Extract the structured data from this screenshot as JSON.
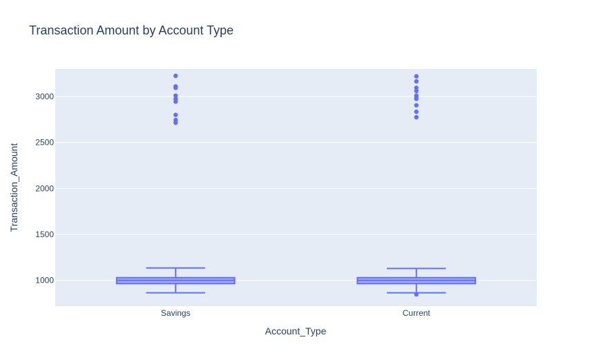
{
  "chart_data": {
    "type": "box",
    "title": "Transaction Amount by Account Type",
    "xlabel": "Account_Type",
    "ylabel": "Transaction_Amount",
    "categories": [
      "Savings",
      "Current"
    ],
    "y_ticks": [
      1000,
      1500,
      2000,
      2500,
      3000
    ],
    "ylim": [
      720,
      3300
    ],
    "grid": true,
    "color": "#636efa",
    "plot_background": "#e5ecf6",
    "boxes": [
      {
        "name": "Savings",
        "lower_fence": 865,
        "q1": 965,
        "median": 1000,
        "q3": 1030,
        "upper_fence": 1135,
        "outliers": [
          3225,
          3110,
          3095,
          3010,
          2975,
          2945,
          2800,
          2745,
          2715
        ]
      },
      {
        "name": "Current",
        "lower_fence": 865,
        "q1": 965,
        "median": 1000,
        "q3": 1030,
        "upper_fence": 1130,
        "outliers": [
          3220,
          3165,
          3095,
          3060,
          3010,
          2990,
          2975,
          2905,
          2835,
          2775,
          848
        ]
      }
    ]
  }
}
